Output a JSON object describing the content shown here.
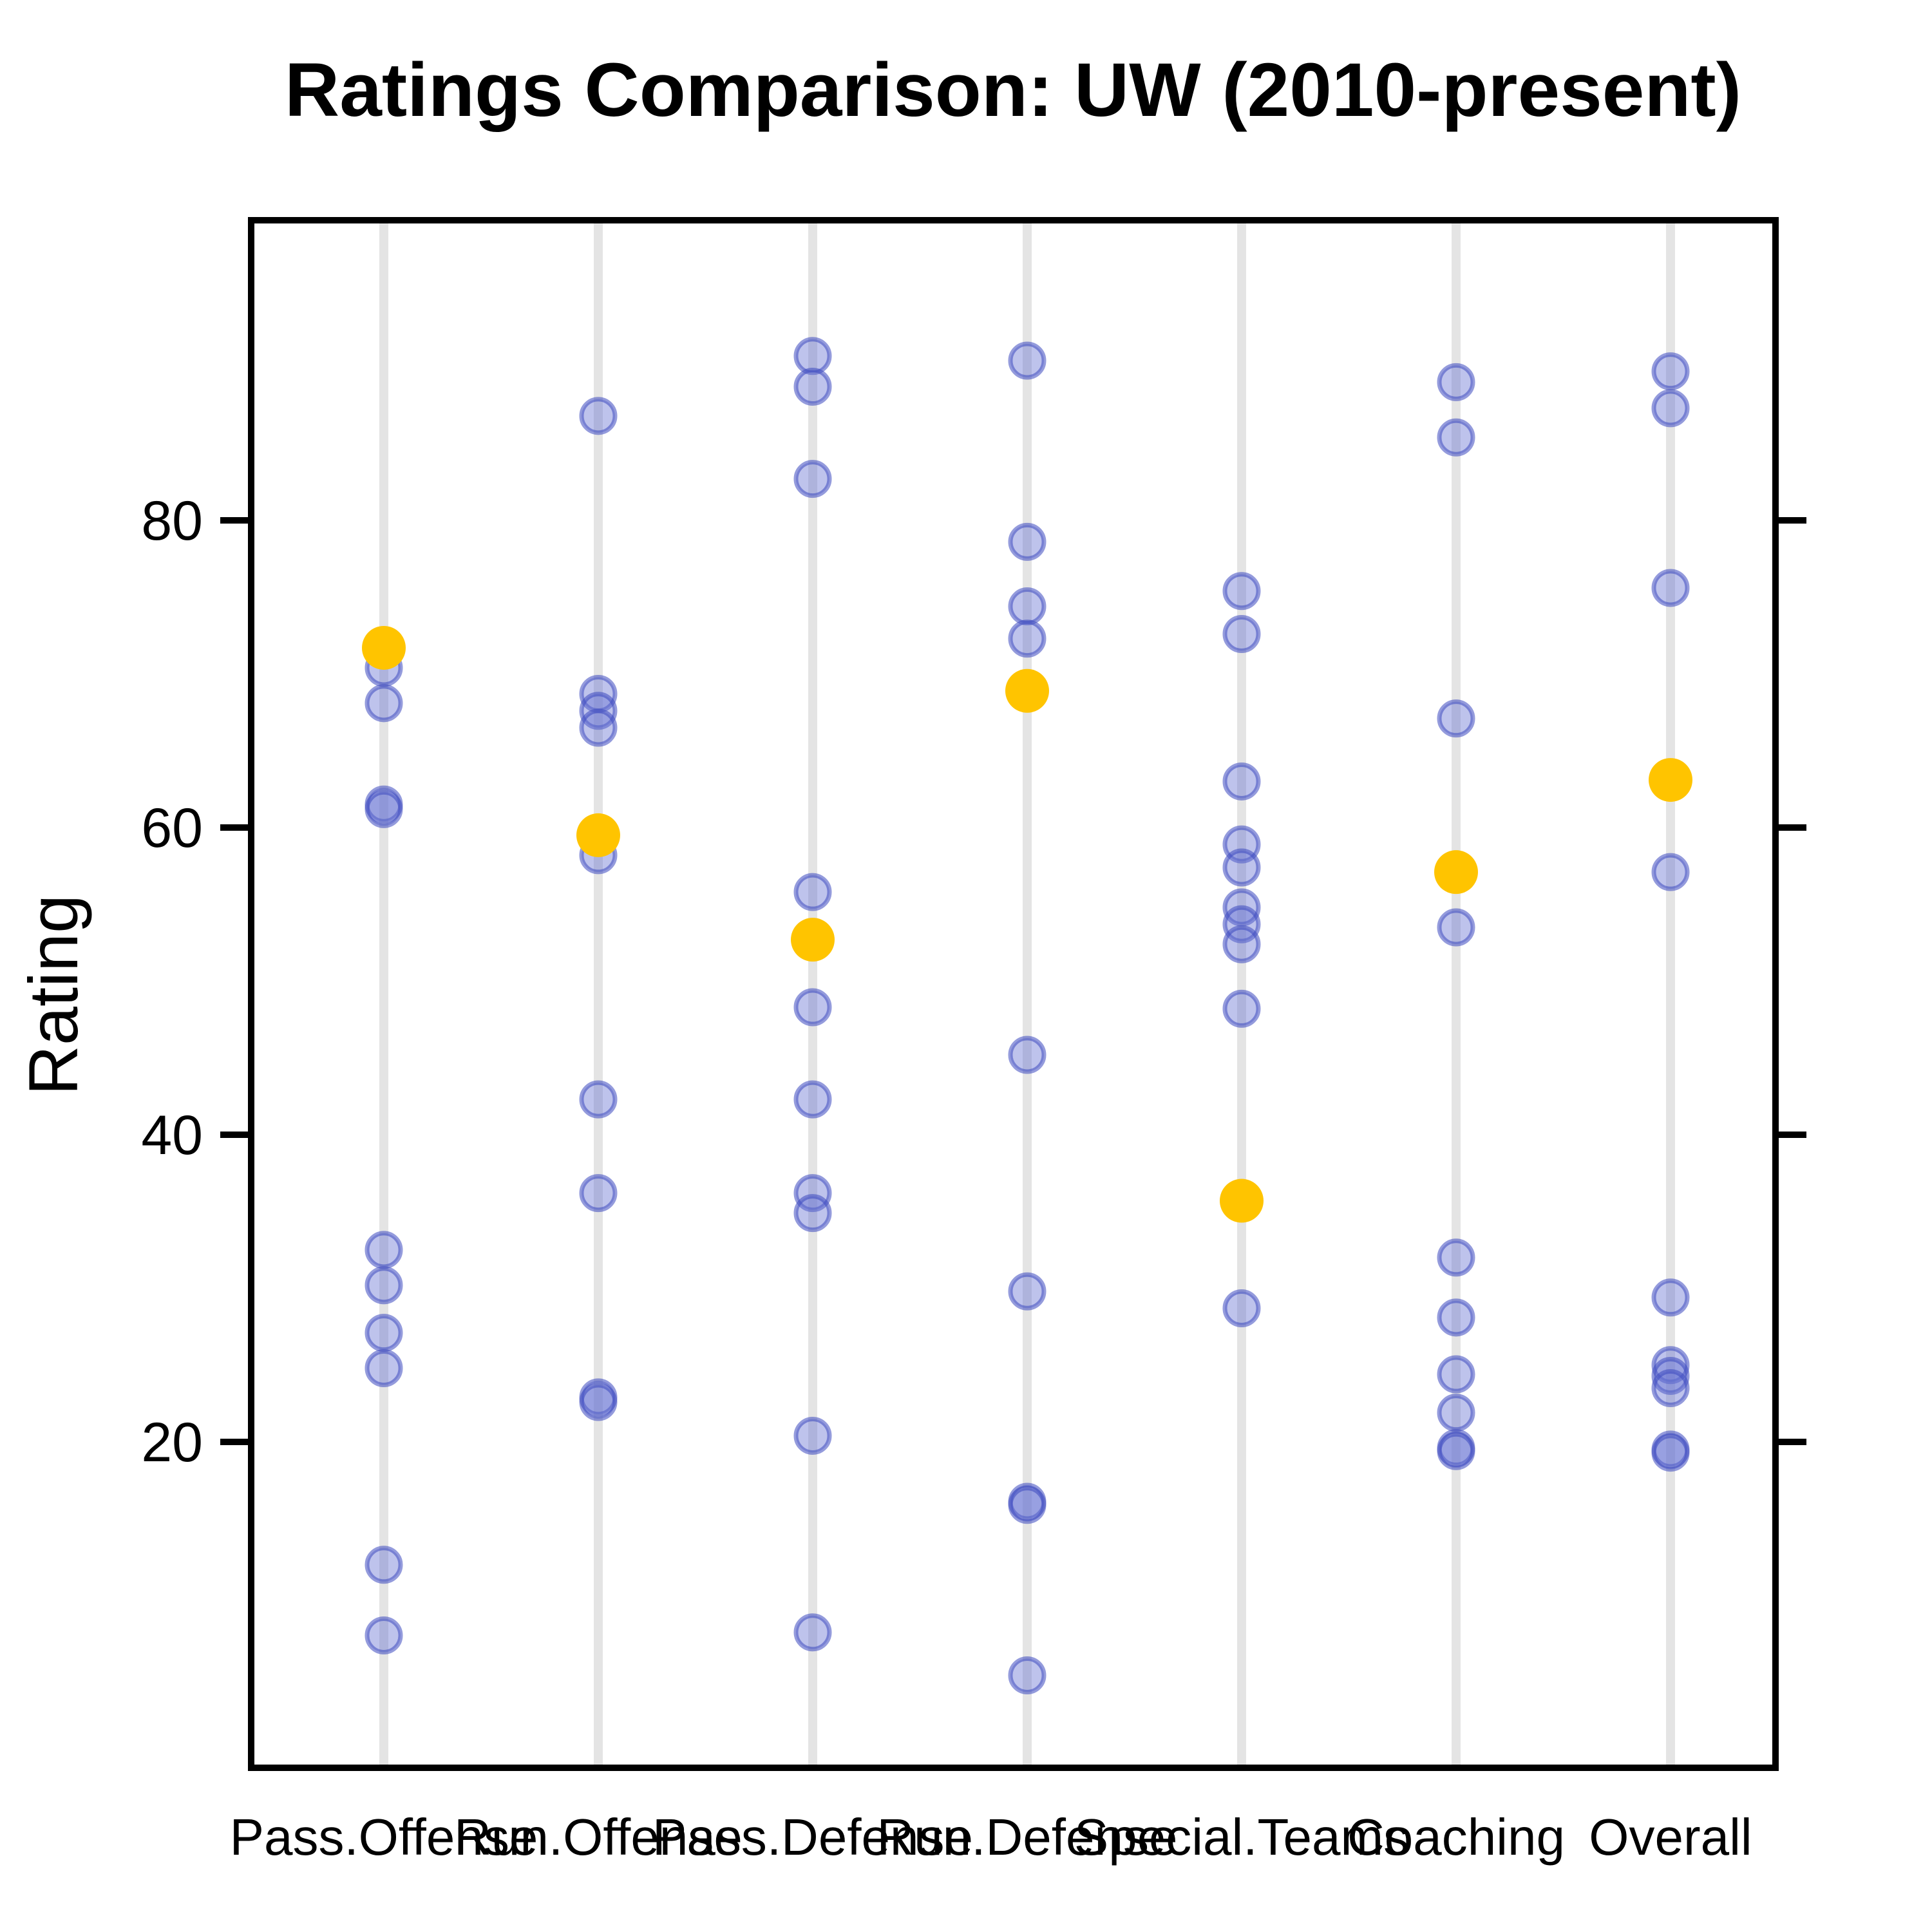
{
  "chart_data": {
    "type": "scatter",
    "subtype": "strip-plot",
    "title": "Ratings Comparison: UW (2010-present)",
    "xlabel": "",
    "ylabel": "Rating",
    "ylim": [
      0,
      99
    ],
    "yticks": [
      20,
      40,
      60,
      80
    ],
    "grid": "vertical-category-lines-only",
    "legend": "none",
    "point_color": "#6470d2",
    "point_stroke": "#3c49c0",
    "highlight_color": "#ffc400",
    "categories": [
      {
        "label": "Pass.Offense",
        "others": [
          70.4,
          68.1,
          61.5,
          61.2,
          32.5,
          30.2,
          27.1,
          24.8,
          12.0,
          7.4
        ],
        "highlight": 71.7
      },
      {
        "label": "Run.Offense",
        "others": [
          86.8,
          68.7,
          67.6,
          66.5,
          58.2,
          42.3,
          36.2,
          22.9,
          22.6
        ],
        "highlight": 59.5
      },
      {
        "label": "Pass.Defense",
        "others": [
          90.7,
          88.7,
          82.7,
          55.8,
          48.3,
          42.3,
          36.2,
          34.9,
          20.4,
          7.6
        ],
        "highlight": 52.7
      },
      {
        "label": "Run.Defense",
        "others": [
          90.4,
          78.6,
          74.4,
          72.3,
          45.2,
          29.8,
          16.1,
          15.9,
          4.8
        ],
        "highlight": 68.9
      },
      {
        "label": "Special.Teams",
        "others": [
          75.4,
          72.6,
          63.0,
          58.9,
          57.4,
          54.8,
          53.7,
          52.4,
          48.2,
          28.7
        ],
        "highlight": 35.7
      },
      {
        "label": "Coaching",
        "others": [
          89.0,
          85.4,
          67.1,
          53.5,
          32.0,
          28.1,
          24.4,
          21.9,
          19.6,
          19.4
        ],
        "highlight": 57.1
      },
      {
        "label": "Overall",
        "others": [
          89.7,
          87.3,
          75.6,
          57.1,
          29.4,
          25.0,
          24.3,
          23.5,
          19.5,
          19.3
        ],
        "highlight": 63.1
      }
    ]
  }
}
